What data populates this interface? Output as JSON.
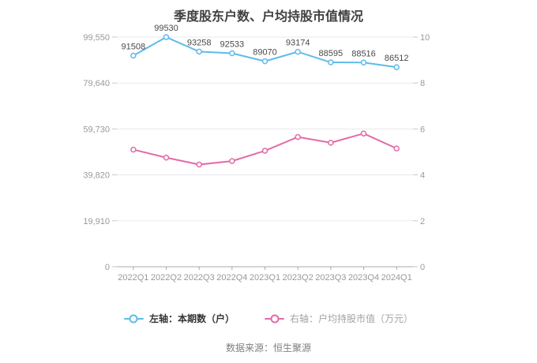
{
  "title": "季度股东户数、户均持股市值情况",
  "source": "数据来源：恒生聚源",
  "chart_data": {
    "type": "line",
    "categories": [
      "2022Q1",
      "2022Q2",
      "2022Q3",
      "2022Q4",
      "2023Q1",
      "2023Q2",
      "2023Q3",
      "2023Q4",
      "2024Q1"
    ],
    "series": [
      {
        "id": "shareholder-count",
        "name": "左轴：本期数（户）",
        "axis": "left",
        "color": "#5fbbea",
        "show_labels": true,
        "values": [
          91508,
          99530,
          93258,
          92533,
          89070,
          93174,
          88595,
          88516,
          86512
        ]
      },
      {
        "id": "market-value-per-holder",
        "name": "右轴：户均持股市值（万元）",
        "axis": "right",
        "color": "#e26ba8",
        "show_labels": false,
        "values": [
          5.1,
          4.75,
          4.45,
          4.6,
          5.05,
          5.65,
          5.4,
          5.8,
          5.15
        ]
      }
    ],
    "left_axis": {
      "min": 0,
      "max": 99550,
      "tick_labels": [
        "0",
        "19,910",
        "39,820",
        "59,730",
        "79,640",
        "99,550"
      ]
    },
    "right_axis": {
      "min": 0,
      "max": 10,
      "tick_labels": [
        "0",
        "2",
        "4",
        "6",
        "8",
        "10"
      ]
    },
    "grid": true,
    "legend_position": "bottom"
  }
}
